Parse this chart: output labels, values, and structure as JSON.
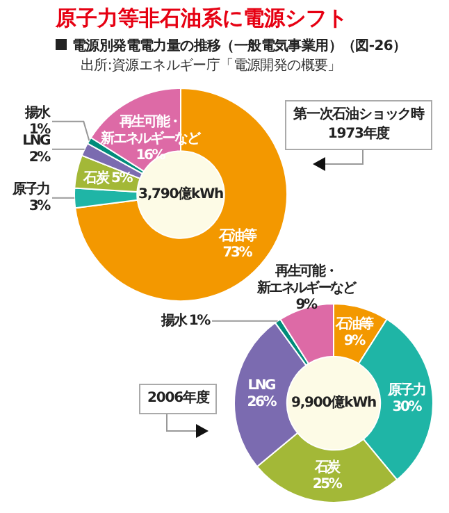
{
  "chart_data": [
    {
      "type": "donut",
      "title": "原子力等非石油系に電源シフト",
      "subtitle": "電源別発電電力量の推移（一般電気事業用）（図-26）",
      "categories": [
        "石油等",
        "原子力",
        "石炭",
        "LNG",
        "揚水",
        "再生可能・新エネルギーなど"
      ],
      "values": [
        73,
        3,
        5,
        2,
        1,
        16
      ],
      "colors": [
        "#f39800",
        "#1fb5a6",
        "#a3b837",
        "#7b6bb0",
        "#008c7a",
        "#dd6aa6"
      ],
      "value_labels": [
        "73%",
        "3%",
        "5%",
        "2%",
        "1%",
        "16%"
      ],
      "annotations": [
        "3,790億kWh",
        "第一次石油ショック時\n1973年度",
        "出所:資源エネルギー庁「電源開発の概要」"
      ]
    },
    {
      "type": "donut",
      "categories": [
        "石油等",
        "原子力",
        "石炭",
        "LNG",
        "揚水",
        "再生可能・新エネルギーなど"
      ],
      "values": [
        9,
        30,
        25,
        26,
        1,
        9
      ],
      "colors": [
        "#f39800",
        "#1fb5a6",
        "#a3b837",
        "#7b6bb0",
        "#008c7a",
        "#dd6aa6"
      ],
      "value_labels": [
        "9%",
        "30%",
        "25%",
        "26%",
        "1%",
        "9%"
      ],
      "annotations": [
        "9,900億kWh",
        "2006年度"
      ]
    }
  ]
}
